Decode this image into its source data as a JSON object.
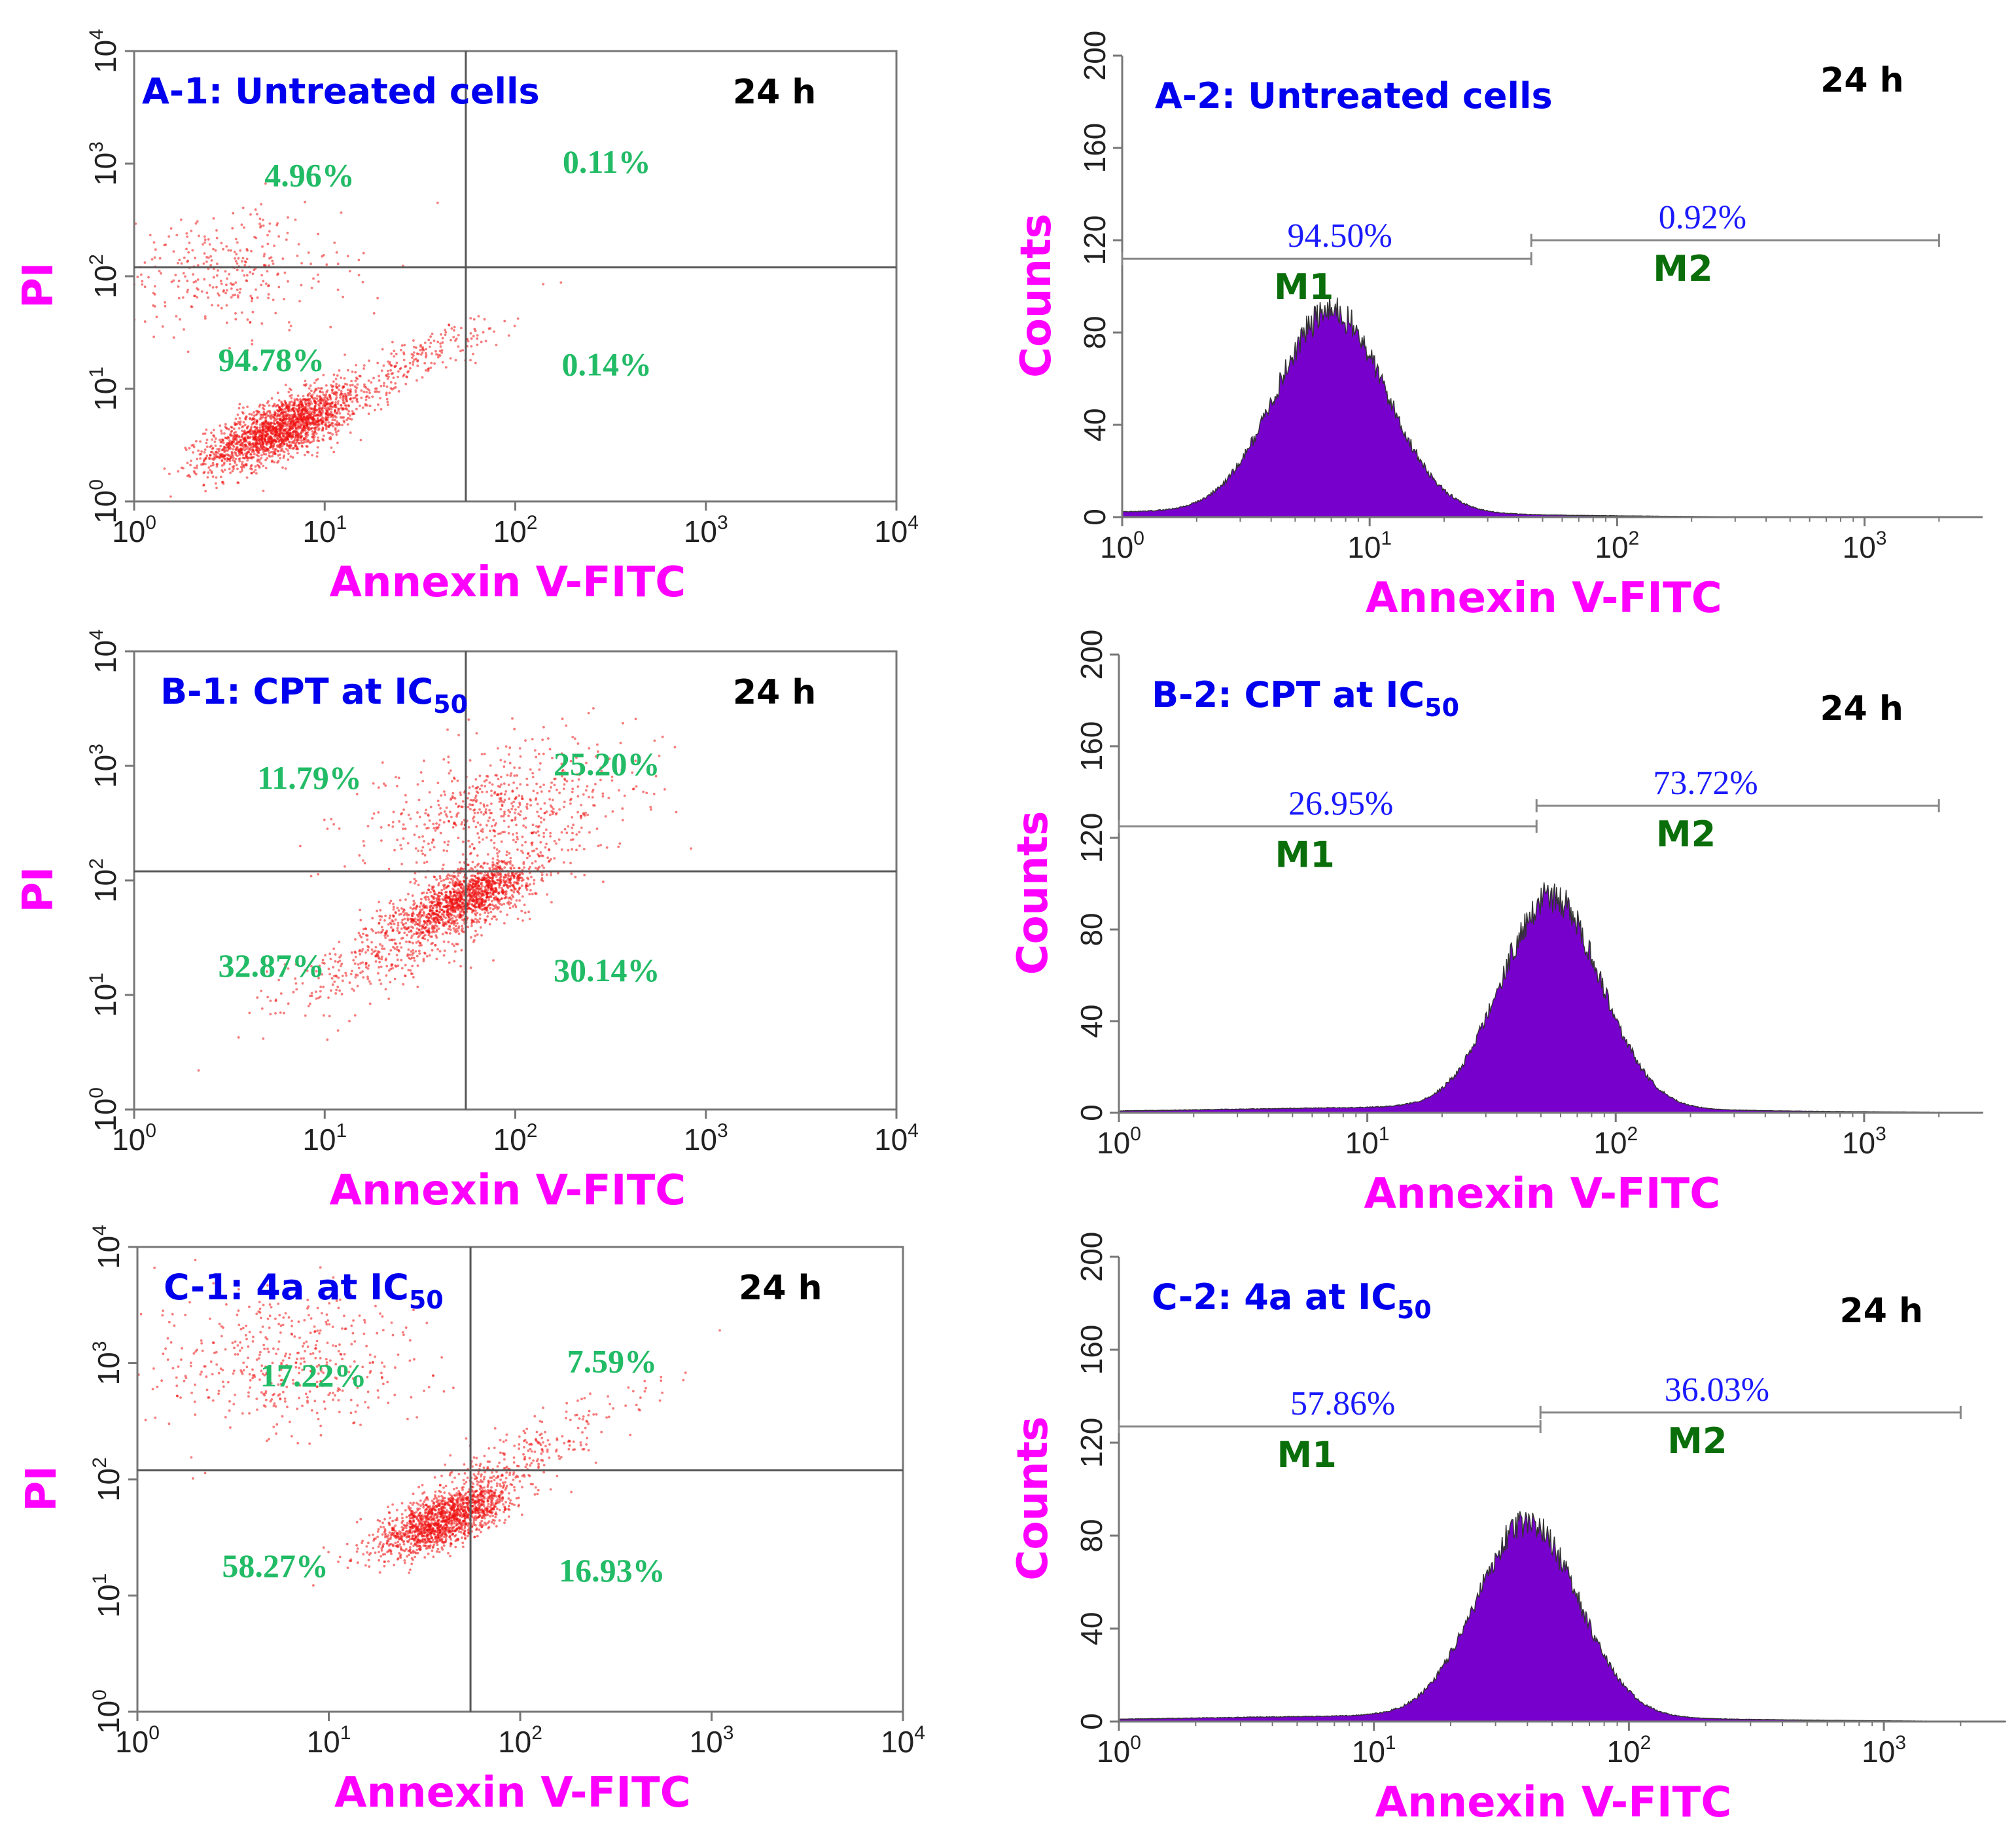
{
  "figure": "flow cytometry annexin V-FITC / PI apoptosis panels",
  "chart_data": [
    {
      "id": "A-1",
      "type": "scatter",
      "title": "A-1: Untreated cells",
      "title_sub": "",
      "time": "24 h",
      "xlabel": "Annexin V-FITC",
      "ylabel": "PI",
      "x_scale": "log",
      "xlim": [
        1,
        10000
      ],
      "ylim": [
        1,
        10000
      ],
      "x_ticks": [
        {
          "base": "10",
          "exp": "0"
        },
        {
          "base": "10",
          "exp": "1"
        },
        {
          "base": "10",
          "exp": "2"
        },
        {
          "base": "10",
          "exp": "3"
        },
        {
          "base": "10",
          "exp": "4"
        }
      ],
      "y_ticks": [
        {
          "base": "10",
          "exp": "0"
        },
        {
          "base": "10",
          "exp": "1"
        },
        {
          "base": "10",
          "exp": "2"
        },
        {
          "base": "10",
          "exp": "3"
        },
        {
          "base": "10",
          "exp": "4"
        }
      ],
      "quadrant_gate": {
        "x": 55,
        "y": 120
      },
      "quadrants": [
        {
          "pos": "upper-left",
          "label": "4.96%"
        },
        {
          "pos": "upper-right",
          "label": "0.11%"
        },
        {
          "pos": "lower-left",
          "label": "94.78%"
        },
        {
          "pos": "lower-right",
          "label": "0.14%"
        }
      ],
      "populations": [
        {
          "cx": 6,
          "cy": 4.5,
          "n": 2000,
          "spread": 0.18,
          "corr": 0.7
        },
        {
          "cx": 30,
          "cy": 18,
          "n": 220,
          "spread": 0.25,
          "corr": 0.9
        },
        {
          "cx": 3,
          "cy": 110,
          "n": 320,
          "spread": 0.28,
          "corr": 0
        }
      ]
    },
    {
      "id": "A-2",
      "type": "area",
      "title": "A-2: Untreated cells",
      "title_sub": "",
      "time": "24 h",
      "xlabel": "Annexin V-FITC",
      "ylabel": "Counts",
      "x_scale": "log",
      "xlim": [
        1,
        3000
      ],
      "ylim": [
        0,
        200
      ],
      "x_ticks": [
        {
          "base": "10",
          "exp": "0"
        },
        {
          "base": "10",
          "exp": "1"
        },
        {
          "base": "10",
          "exp": "2"
        },
        {
          "base": "10",
          "exp": "3"
        }
      ],
      "y_ticks": [
        "0",
        "40",
        "80",
        "120",
        "160",
        "200"
      ],
      "peak": {
        "center": 7,
        "height": 87,
        "spread": 0.22
      },
      "markers": [
        {
          "name": "M1",
          "pct": "94.50%",
          "start": 1,
          "end": 45,
          "level": 112
        },
        {
          "name": "M2",
          "pct": "0.92%",
          "start": 45,
          "end": 2000,
          "level": 120
        }
      ]
    },
    {
      "id": "B-1",
      "type": "scatter",
      "title": "B-1: CPT at IC",
      "title_sub": "50",
      "time": "24 h",
      "xlabel": "Annexin V-FITC",
      "ylabel": "PI",
      "x_scale": "log",
      "xlim": [
        1,
        10000
      ],
      "ylim": [
        1,
        10000
      ],
      "x_ticks": [
        {
          "base": "10",
          "exp": "0"
        },
        {
          "base": "10",
          "exp": "1"
        },
        {
          "base": "10",
          "exp": "2"
        },
        {
          "base": "10",
          "exp": "3"
        },
        {
          "base": "10",
          "exp": "4"
        }
      ],
      "y_ticks": [
        {
          "base": "10",
          "exp": "0"
        },
        {
          "base": "10",
          "exp": "1"
        },
        {
          "base": "10",
          "exp": "2"
        },
        {
          "base": "10",
          "exp": "3"
        },
        {
          "base": "10",
          "exp": "4"
        }
      ],
      "quadrant_gate": {
        "x": 55,
        "y": 120
      },
      "quadrants": [
        {
          "pos": "upper-left",
          "label": "11.79%"
        },
        {
          "pos": "upper-right",
          "label": "25.20%"
        },
        {
          "pos": "lower-left",
          "label": "32.87%"
        },
        {
          "pos": "lower-right",
          "label": "30.14%"
        }
      ],
      "populations": [
        {
          "cx": 55,
          "cy": 70,
          "n": 1300,
          "spread": 0.16,
          "corr": 0.7
        },
        {
          "cx": 25,
          "cy": 28,
          "n": 450,
          "spread": 0.3,
          "corr": 0.8
        },
        {
          "cx": 90,
          "cy": 400,
          "n": 650,
          "spread": 0.32,
          "corr": 0.3
        }
      ]
    },
    {
      "id": "B-2",
      "type": "area",
      "title": "B-2: CPT at IC",
      "title_sub": "50",
      "time": "24 h",
      "xlabel": "Annexin V-FITC",
      "ylabel": "Counts",
      "x_scale": "log",
      "xlim": [
        1,
        3000
      ],
      "ylim": [
        0,
        200
      ],
      "x_ticks": [
        {
          "base": "10",
          "exp": "0"
        },
        {
          "base": "10",
          "exp": "1"
        },
        {
          "base": "10",
          "exp": "2"
        },
        {
          "base": "10",
          "exp": "3"
        }
      ],
      "y_ticks": [
        "0",
        "40",
        "80",
        "120",
        "160",
        "200"
      ],
      "peak": {
        "center": 55,
        "height": 92,
        "spread": 0.2
      },
      "markers": [
        {
          "name": "M1",
          "pct": "26.95%",
          "start": 1,
          "end": 48,
          "level": 125
        },
        {
          "name": "M2",
          "pct": "73.72%",
          "start": 48,
          "end": 2000,
          "level": 134
        }
      ]
    },
    {
      "id": "C-1",
      "type": "scatter",
      "title": "C-1: 4a at IC",
      "title_sub": "50",
      "time": "24 h",
      "xlabel": "Annexin V-FITC",
      "ylabel": "PI",
      "x_scale": "log",
      "xlim": [
        1,
        10000
      ],
      "ylim": [
        1,
        10000
      ],
      "x_ticks": [
        {
          "base": "10",
          "exp": "0"
        },
        {
          "base": "10",
          "exp": "1"
        },
        {
          "base": "10",
          "exp": "2"
        },
        {
          "base": "10",
          "exp": "3"
        },
        {
          "base": "10",
          "exp": "4"
        }
      ],
      "y_ticks": [
        {
          "base": "10",
          "exp": "0"
        },
        {
          "base": "10",
          "exp": "1"
        },
        {
          "base": "10",
          "exp": "2"
        },
        {
          "base": "10",
          "exp": "3"
        },
        {
          "base": "10",
          "exp": "4"
        }
      ],
      "quadrant_gate": {
        "x": 55,
        "y": 120
      },
      "quadrants": [
        {
          "pos": "upper-left",
          "label": "17.22%"
        },
        {
          "pos": "upper-right",
          "label": "7.59%"
        },
        {
          "pos": "lower-left",
          "label": "58.27%"
        },
        {
          "pos": "lower-right",
          "label": "16.93%"
        }
      ],
      "populations": [
        {
          "cx": 40,
          "cy": 45,
          "n": 1500,
          "spread": 0.16,
          "corr": 0.7
        },
        {
          "cx": 100,
          "cy": 150,
          "n": 300,
          "spread": 0.3,
          "corr": 0.9
        },
        {
          "cx": 6,
          "cy": 1100,
          "n": 450,
          "spread": 0.32,
          "corr": 0
        }
      ]
    },
    {
      "id": "C-2",
      "type": "area",
      "title": "C-2: 4a at IC",
      "title_sub": "50",
      "time": "24 h",
      "xlabel": "Annexin V-FITC",
      "ylabel": "Counts",
      "x_scale": "log",
      "xlim": [
        1,
        3000
      ],
      "ylim": [
        0,
        200
      ],
      "x_ticks": [
        {
          "base": "10",
          "exp": "0"
        },
        {
          "base": "10",
          "exp": "1"
        },
        {
          "base": "10",
          "exp": "2"
        },
        {
          "base": "10",
          "exp": "3"
        }
      ],
      "y_ticks": [
        "0",
        "40",
        "80",
        "120",
        "160",
        "200"
      ],
      "peak": {
        "center": 40,
        "height": 83,
        "spread": 0.2
      },
      "markers": [
        {
          "name": "M1",
          "pct": "57.86%",
          "start": 1,
          "end": 45,
          "level": 127
        },
        {
          "name": "M2",
          "pct": "36.03%",
          "start": 45,
          "end": 2000,
          "level": 133
        }
      ]
    }
  ],
  "colors": {
    "dots": "#ee1111",
    "hist_fill": "#7700cc",
    "hist_edge": "#333333",
    "axis": "#777777",
    "gate": "#555555",
    "marker_line": "#888888"
  }
}
